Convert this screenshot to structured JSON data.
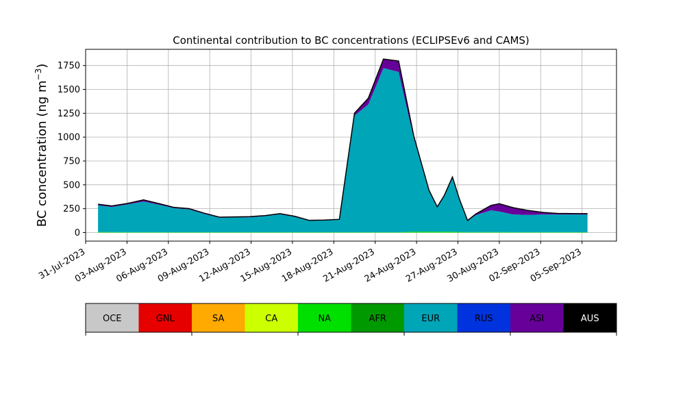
{
  "chart_data": {
    "type": "area",
    "title": "Continental contribution to BC concentrations (ECLIPSEv6 and CAMS)",
    "ylabel_main": "BC concentration (ng m",
    "ylabel_sup": "−3",
    "ylabel_close": ")",
    "xlabel": "",
    "ylim": [
      -90,
      1920
    ],
    "grid": true,
    "stacked": true,
    "x_ticks": [
      "31-Jul-2023",
      "03-Aug-2023",
      "06-Aug-2023",
      "09-Aug-2023",
      "12-Aug-2023",
      "15-Aug-2023",
      "18-Aug-2023",
      "21-Aug-2023",
      "24-Aug-2023",
      "27-Aug-2023",
      "30-Aug-2023",
      "02-Sep-2023",
      "05-Sep-2023"
    ],
    "y_ticks": [
      "0",
      "250",
      "500",
      "750",
      "1000",
      "1250",
      "1500",
      "1750"
    ],
    "y_tick_values": [
      0,
      250,
      500,
      750,
      1000,
      1250,
      1500,
      1750
    ],
    "x_range_days": [
      0,
      38.5
    ],
    "x": [
      0.9,
      1.9,
      3.0,
      4.2,
      5.3,
      6.4,
      7.5,
      8.6,
      9.7,
      10.8,
      11.9,
      13.0,
      14.1,
      15.2,
      16.2,
      17.3,
      18.4,
      19.5,
      20.5,
      21.6,
      22.7,
      23.8,
      24.9,
      25.5,
      26.0,
      26.6,
      27.1,
      27.7,
      28.3,
      29.4,
      30.0,
      31.0,
      32.1,
      33.2,
      34.2,
      35.3,
      36.4
    ],
    "series": [
      {
        "name": "OCE",
        "color": "#c8c8c8",
        "values": [
          0,
          0,
          0,
          0,
          0,
          0,
          0,
          0,
          0,
          0,
          0,
          0,
          0,
          0,
          0,
          0,
          0,
          0,
          0,
          0,
          0,
          0,
          0,
          0,
          0,
          0,
          0,
          0,
          0,
          0,
          0,
          0,
          0,
          0,
          0,
          0,
          0
        ]
      },
      {
        "name": "GNL",
        "color": "#e60000",
        "values": [
          0,
          0,
          0,
          0,
          0,
          0,
          0,
          0,
          0,
          0,
          0,
          0,
          0,
          0,
          0,
          0,
          0,
          0,
          0,
          0,
          0,
          0,
          0,
          0,
          0,
          0,
          0,
          0,
          0,
          0,
          0,
          0,
          0,
          0,
          0,
          0,
          0
        ]
      },
      {
        "name": "SA",
        "color": "#ffaa00",
        "values": [
          0,
          0,
          0,
          0,
          0,
          0,
          0,
          0,
          0,
          0,
          0,
          0,
          0,
          0,
          0,
          0,
          0,
          0,
          0,
          0,
          0,
          0,
          0,
          0,
          0,
          0,
          0,
          0,
          0,
          0,
          0,
          0,
          0,
          0,
          0,
          0,
          0
        ]
      },
      {
        "name": "CA",
        "color": "#ccff00",
        "values": [
          0,
          0,
          0,
          0,
          0,
          0,
          0,
          0,
          0,
          0,
          0,
          0,
          0,
          0,
          0,
          0,
          0,
          0,
          0,
          0,
          0,
          0,
          0,
          0,
          0,
          0,
          0,
          0,
          0,
          0,
          0,
          0,
          0,
          0,
          0,
          0,
          0
        ]
      },
      {
        "name": "NA",
        "color": "#00e000",
        "values": [
          6,
          5,
          4,
          4,
          4,
          3,
          3,
          3,
          3,
          3,
          3,
          3,
          3,
          3,
          3,
          3,
          3,
          3,
          3,
          3,
          3,
          10,
          10,
          10,
          8,
          8,
          6,
          5,
          5,
          5,
          5,
          4,
          4,
          4,
          4,
          4,
          3
        ]
      },
      {
        "name": "AFR",
        "color": "#009900",
        "values": [
          0,
          0,
          0,
          0,
          0,
          0,
          0,
          0,
          0,
          0,
          0,
          0,
          0,
          0,
          0,
          0,
          0,
          0,
          0,
          0,
          0,
          0,
          0,
          0,
          0,
          0,
          0,
          0,
          0,
          0,
          0,
          0,
          0,
          0,
          0,
          0,
          0
        ]
      },
      {
        "name": "EUR",
        "color": "#00a5b8",
        "values": [
          279,
          263,
          290,
          321,
          288,
          253,
          240,
          193,
          152,
          155,
          157,
          169,
          188,
          160,
          120,
          123,
          130,
          1223,
          1340,
          1720,
          1680,
          975,
          422,
          254,
          370,
          560,
          340,
          116,
          178,
          228,
          215,
          185,
          180,
          185,
          185,
          185,
          185
        ]
      },
      {
        "name": "RUS",
        "color": "#0033dd",
        "values": [
          0,
          0,
          0,
          0,
          0,
          0,
          0,
          0,
          0,
          0,
          0,
          0,
          0,
          0,
          0,
          0,
          0,
          0,
          0,
          0,
          0,
          0,
          0,
          0,
          0,
          0,
          0,
          0,
          0,
          0,
          0,
          0,
          0,
          0,
          0,
          0,
          0
        ]
      },
      {
        "name": "ASI",
        "color": "#660099",
        "values": [
          10,
          9,
          8,
          15,
          10,
          6,
          6,
          5,
          4,
          4,
          4,
          4,
          5,
          4,
          3,
          3,
          3,
          20,
          60,
          90,
          110,
          20,
          10,
          4,
          6,
          12,
          6,
          3,
          10,
          50,
          80,
          70,
          45,
          20,
          10,
          8,
          8
        ]
      },
      {
        "name": "AUS",
        "color": "#000000",
        "values": [
          2,
          2,
          2,
          2,
          2,
          2,
          2,
          2,
          2,
          2,
          2,
          2,
          2,
          2,
          2,
          2,
          2,
          5,
          5,
          5,
          5,
          5,
          3,
          2,
          2,
          2,
          2,
          2,
          2,
          2,
          2,
          2,
          2,
          2,
          2,
          2,
          2
        ]
      }
    ],
    "colorbar": {
      "labels": [
        "OCE",
        "GNL",
        "SA",
        "CA",
        "NA",
        "AFR",
        "EUR",
        "RUS",
        "ASI",
        "AUS"
      ],
      "colors": [
        "#c8c8c8",
        "#e60000",
        "#ffaa00",
        "#ccff00",
        "#00e000",
        "#009900",
        "#00a5b8",
        "#0033dd",
        "#660099",
        "#000000"
      ],
      "label_colors": [
        "#000000",
        "#000000",
        "#000000",
        "#000000",
        "#000000",
        "#000000",
        "#000000",
        "#000000",
        "#000000",
        "#ffffff"
      ]
    }
  }
}
